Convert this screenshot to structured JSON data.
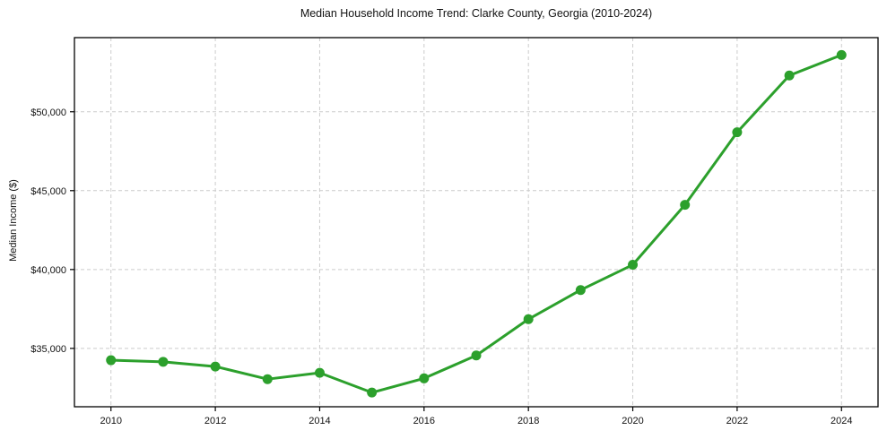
{
  "figure": {
    "background": "#ffffff"
  },
  "chart_data": {
    "type": "line",
    "title": "Median Household Income Trend: Clarke County, Georgia (2010-2024)",
    "xlabel": "",
    "ylabel": "Median Income ($)",
    "x": [
      2010,
      2011,
      2012,
      2013,
      2014,
      2015,
      2016,
      2017,
      2018,
      2019,
      2020,
      2021,
      2022,
      2023,
      2024
    ],
    "series": [
      {
        "name": "Median Household Income",
        "color": "#2ca02c",
        "values": [
          34250,
          34150,
          33850,
          33050,
          33450,
          32200,
          33100,
          34550,
          36850,
          38700,
          40300,
          44100,
          48700,
          52300,
          53600
        ]
      }
    ],
    "xlim": [
      2009.3,
      2024.7
    ],
    "ylim": [
      31300,
      54700
    ],
    "x_ticks": [
      2010,
      2012,
      2014,
      2016,
      2018,
      2020,
      2022,
      2024
    ],
    "y_ticks": [
      35000,
      40000,
      45000,
      50000
    ],
    "y_tick_labels": [
      "$35,000",
      "$40,000",
      "$45,000",
      "$50,000"
    ],
    "grid": true,
    "grid_style": "dashed",
    "grid_color": "#cccccc",
    "line_width": 3,
    "marker": "circle",
    "marker_radius": 5.5,
    "legend_position": "none"
  }
}
